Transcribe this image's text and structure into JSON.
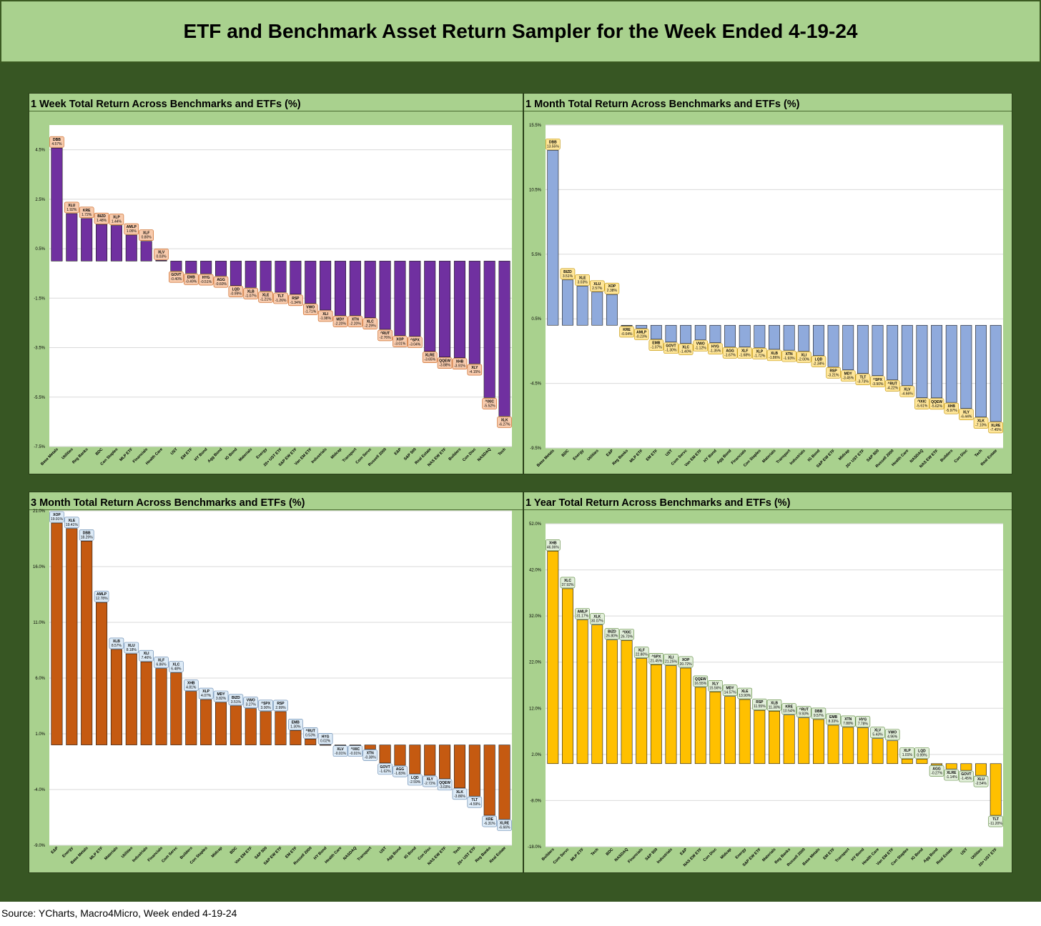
{
  "page": {
    "title": "ETF and Benchmark Asset Return Sampler for the Week Ended 4-19-24",
    "source": "Source: YCharts, Macro4Micro, Week ended 4-19-24"
  },
  "colors": {
    "bar_1w": "#7030a0",
    "bar_1m": "#8faadc",
    "bar_3m": "#c55a11",
    "bar_1y": "#ffc000"
  },
  "chart_data": [
    {
      "type": "bar",
      "title": "1 Week Total Return Across Benchmarks and ETFs (%)",
      "ylim": [
        -7.5,
        5.5
      ],
      "yticks": [
        "4.5%",
        "2.5%",
        "0.5%",
        "-1.5%",
        "-3.5%",
        "-5.5%",
        "-7.5%"
      ],
      "ytick_values": [
        4.5,
        2.5,
        0.5,
        -1.5,
        -3.5,
        -5.5,
        -7.5
      ],
      "label_style": {
        "fill": "#f8cbad",
        "stroke": "#c55a11"
      },
      "categories": [
        "Base Metals",
        "Utilities",
        "Reg Banks",
        "BDC",
        "Con Staples",
        "MLP ETF",
        "Financials",
        "Health Care",
        "UST",
        "EM ETF",
        "HY Bond",
        "Agg Bond",
        "IG Bond",
        "Materials",
        "Energy",
        "20+ UST ETF",
        "S&P EW ETF",
        "Van EM ETF",
        "Industrials",
        "Midcap",
        "Transport",
        "Com Servc",
        "Russell 2000",
        "E&P",
        "S&P 500",
        "Real Estate",
        "NAS EW ETF",
        "Builders",
        "Con Disc",
        "NASDAQ",
        "Tech"
      ],
      "labels": [
        "DBB",
        "XLU",
        "KRE",
        "BIZD",
        "XLP",
        "AMLP",
        "XLF",
        "XLV",
        "GOVT",
        "EMB",
        "HYG",
        "AGG",
        "LQD",
        "XLB",
        "XLE",
        "TLT",
        "RSP",
        "VWO",
        "XLI",
        "MDY",
        "XTN",
        "XLC",
        "^RUT",
        "XOP",
        "^SPX",
        "XLRE",
        "QQEW",
        "XHB",
        "XLY",
        "^IXIC",
        "XLK"
      ],
      "value_labels": [
        "4.57%",
        "1.92%",
        "1.72%",
        "1.48%",
        "1.44%",
        "1.05%",
        "0.80%",
        "0.03%",
        "-0.40%",
        "-0.49%",
        "-0.51%",
        "-0.60%",
        "-0.99%",
        "-1.07%",
        "-1.21%",
        "-1.26%",
        "-1.34%",
        "-1.71%",
        "-1.98%",
        "-2.20%",
        "-2.20%",
        "-2.29%",
        "-2.76%",
        "-3.01%",
        "-3.04%",
        "-3.65%",
        "-3.88%",
        "-3.91%",
        "-4.15%",
        "-5.52%",
        "-6.27%"
      ],
      "values": [
        4.57,
        1.92,
        1.72,
        1.48,
        1.44,
        1.05,
        0.8,
        0.03,
        -0.4,
        -0.49,
        -0.51,
        -0.6,
        -0.99,
        -1.07,
        -1.21,
        -1.26,
        -1.34,
        -1.71,
        -1.98,
        -2.2,
        -2.2,
        -2.29,
        -2.76,
        -3.01,
        -3.04,
        -3.65,
        -3.88,
        -3.91,
        -4.15,
        -5.52,
        -6.27
      ]
    },
    {
      "type": "bar",
      "title": "1 Month Total Return Across Benchmarks and ETFs (%)",
      "ylim": [
        -9.5,
        15.5
      ],
      "yticks": [
        "15.5%",
        "10.5%",
        "5.5%",
        "0.5%",
        "-4.5%",
        "-9.5%"
      ],
      "ytick_values": [
        15.5,
        10.5,
        5.5,
        0.5,
        -4.5,
        -9.5
      ],
      "label_style": {
        "fill": "#ffe699",
        "stroke": "#bf9000"
      },
      "categories": [
        "Base Metals",
        "BDC",
        "Energy",
        "Utilities",
        "E&P",
        "Reg Banks",
        "MLP ETF",
        "EM ETF",
        "UST",
        "Com Servc",
        "Van EM ETF",
        "HY Bond",
        "Agg Bond",
        "Financials",
        "Con Staples",
        "Materials",
        "Transport",
        "Industrials",
        "IG Bond",
        "S&P EW ETF",
        "Midcap",
        "20+ UST ETF",
        "S&P 500",
        "Russell 2000",
        "Health Care",
        "NASDAQ",
        "NAS EW ETF",
        "Builders",
        "Con Disc",
        "Tech",
        "Real Estate"
      ],
      "labels": [
        "DBB",
        "BIZD",
        "XLE",
        "XLU",
        "XOP",
        "KRE",
        "AMLP",
        "EMB",
        "GOVT",
        "XLC",
        "VWO",
        "HYG",
        "AGG",
        "XLF",
        "XLP",
        "XLB",
        "XTN",
        "XLI",
        "LQD",
        "RSP",
        "MDY",
        "TLT",
        "^SPX",
        "^RUT",
        "XLV",
        "^IXIC",
        "QQEW",
        "XHB",
        "XLY",
        "XLK",
        "XLRE"
      ],
      "value_labels": [
        "13.55%",
        "3.51%",
        "3.03%",
        "2.57%",
        "2.38%",
        "-0.04%",
        "-0.23%",
        "-1.07%",
        "-1.30%",
        "-1.40%",
        "-1.12%",
        "-1.35%",
        "-1.67%",
        "-1.68%",
        "-1.72%",
        "-1.86%",
        "-1.93%",
        "-2.00%",
        "-2.34%",
        "-3.21%",
        "-3.45%",
        "-3.73%",
        "-3.90%",
        "-4.22%",
        "-4.66%",
        "-5.61%",
        "-5.62%",
        "-5.97%",
        "-6.44%",
        "-7.10%",
        "-7.45%"
      ],
      "values": [
        13.55,
        3.51,
        3.03,
        2.57,
        2.38,
        -0.04,
        -0.23,
        -1.07,
        -1.3,
        -1.4,
        -1.12,
        -1.35,
        -1.67,
        -1.68,
        -1.72,
        -1.86,
        -1.93,
        -2.0,
        -2.34,
        -3.21,
        -3.45,
        -3.73,
        -3.9,
        -4.22,
        -4.66,
        -5.61,
        -5.62,
        -5.97,
        -6.44,
        -7.1,
        -7.45
      ]
    },
    {
      "type": "bar",
      "title": "3 Month Total Return Across Benchmarks and ETFs (%)",
      "ylim": [
        -9.0,
        21.0
      ],
      "yticks": [
        "21.0%",
        "16.0%",
        "11.0%",
        "6.0%",
        "1.0%",
        "-4.0%",
        "-9.0%"
      ],
      "ytick_values": [
        21.0,
        16.0,
        11.0,
        6.0,
        1.0,
        -4.0,
        -9.0
      ],
      "label_style": {
        "fill": "#ddebf7",
        "stroke": "#5a7fa8"
      },
      "categories": [
        "E&P",
        "Energy",
        "Base Metals",
        "MLP ETF",
        "Materials",
        "Utilities",
        "Industrials",
        "Financials",
        "Com Servc",
        "Builders",
        "Con Staples",
        "Midcap",
        "BDC",
        "Van EM ETF",
        "S&P 500",
        "S&P EW ETF",
        "EM ETF",
        "Russell 2000",
        "HY Bond",
        "Health Care",
        "NASDAQ",
        "Transport",
        "UST",
        "Agg Bond",
        "IG Bond",
        "Con Disc",
        "NAS EW ETF",
        "Tech",
        "20+ UST ETF",
        "Reg Banks",
        "Real Estate"
      ],
      "labels": [
        "XOP",
        "XLE",
        "DBB",
        "AMLP",
        "XLB",
        "XLU",
        "XLI",
        "XLF",
        "XLC",
        "XHB",
        "XLP",
        "MDY",
        "BIZD",
        "VWO",
        "^SPX",
        "RSP",
        "EMB",
        "^RUT",
        "HYG",
        "XLV",
        "^IXIC",
        "XTN",
        "GOVT",
        "AGG",
        "LQD",
        "XLY",
        "QQEW",
        "XLK",
        "TLT",
        "KRE",
        "XLRE"
      ],
      "value_labels": [
        "19.91%",
        "19.41%",
        "18.29%",
        "12.78%",
        "8.57%",
        "8.18%",
        "7.46%",
        "6.86%",
        "6.48%",
        "4.81%",
        "4.07%",
        "3.82%",
        "3.51%",
        "3.27%",
        "3.00%",
        "2.99%",
        "1.30%",
        "0.53%",
        "0.02%",
        "-0.01%",
        "-0.01%",
        "-0.38%",
        "-1.62%",
        "-1.83%",
        "-2.59%",
        "-2.72%",
        "-3.03%",
        "-3.86%",
        "-4.59%",
        "-6.31%",
        "-6.66%"
      ],
      "values": [
        19.91,
        19.41,
        18.29,
        12.78,
        8.57,
        8.18,
        7.46,
        6.86,
        6.48,
        4.81,
        4.07,
        3.82,
        3.51,
        3.27,
        3.0,
        2.99,
        1.3,
        0.53,
        0.02,
        -0.01,
        -0.01,
        -0.38,
        -1.62,
        -1.83,
        -2.59,
        -2.72,
        -3.03,
        -3.86,
        -4.59,
        -6.31,
        -6.66
      ]
    },
    {
      "type": "bar",
      "title": "1 Year Total Return Across Benchmarks and ETFs (%)",
      "ylim": [
        -18.0,
        52.0
      ],
      "yticks": [
        "52.0%",
        "42.0%",
        "32.0%",
        "22.0%",
        "12.0%",
        "2.0%",
        "-8.0%",
        "-18.0%"
      ],
      "ytick_values": [
        52.0,
        42.0,
        32.0,
        22.0,
        12.0,
        2.0,
        -8.0,
        -18.0
      ],
      "label_style": {
        "fill": "#e2efda",
        "stroke": "#548235"
      },
      "categories": [
        "Builders",
        "Com Servc",
        "MLP ETF",
        "Tech",
        "BDC",
        "NASDAQ",
        "Financials",
        "S&P 500",
        "Industrials",
        "E&P",
        "NAS EW ETF",
        "Con Disc",
        "Midcap",
        "Energy",
        "S&P EW ETF",
        "Materials",
        "Reg Banks",
        "Russell 2000",
        "Base Metals",
        "EM ETF",
        "Transport",
        "HY Bond",
        "Health Care",
        "Van EM ETF",
        "Con Staples",
        "IG Bond",
        "Agg Bond",
        "Real Estate",
        "UST",
        "Utilities",
        "20+ UST ETF"
      ],
      "labels": [
        "XHB",
        "XLC",
        "AMLP",
        "XLK",
        "BIZD",
        "^IXIC",
        "XLF",
        "^SPX",
        "XLI",
        "XOP",
        "QQEW",
        "XLY",
        "MDY",
        "XLE",
        "RSP",
        "XLB",
        "KRE",
        "^RUT",
        "DBB",
        "EMB",
        "XTN",
        "HYG",
        "XLV",
        "VWO",
        "XLP",
        "LQD",
        "AGG",
        "XLRE",
        "GOVT",
        "XLU",
        "TLT"
      ],
      "value_labels": [
        "46.06%",
        "37.92%",
        "31.17%",
        "30.07%",
        "26.80%",
        "26.70%",
        "22.80%",
        "21.45%",
        "21.25%",
        "20.72%",
        "16.55%",
        "15.56%",
        "14.57%",
        "13.90%",
        "11.55%",
        "11.38%",
        "10.54%",
        "9.93%",
        "9.57%",
        "8.33%",
        "7.88%",
        "7.78%",
        "5.43%",
        "4.96%",
        "1.01%",
        "0.99%",
        "-0.27%",
        "-1.14%",
        "-1.45%",
        "-2.54%",
        "-11.20%"
      ],
      "values": [
        46.06,
        37.92,
        31.17,
        30.07,
        26.8,
        26.7,
        22.8,
        21.45,
        21.25,
        20.72,
        16.55,
        15.56,
        14.57,
        13.9,
        11.55,
        11.38,
        10.54,
        9.93,
        9.57,
        8.33,
        7.88,
        7.78,
        5.43,
        4.96,
        1.01,
        0.99,
        -0.27,
        -1.14,
        -1.45,
        -2.54,
        -11.2
      ]
    }
  ]
}
